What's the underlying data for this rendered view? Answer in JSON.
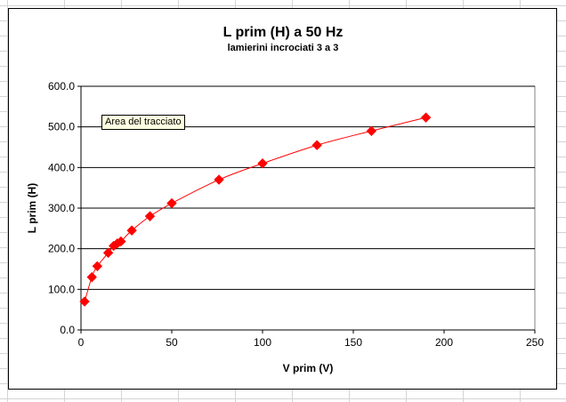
{
  "tooltip": "Area del tracciato",
  "colors": {
    "series": "#ff0000",
    "marker": "#ff0000",
    "grid": "#000000",
    "plot_bg": "#ffffff"
  },
  "chart_data": {
    "type": "scatter",
    "title": "L prim (H) a 50 Hz",
    "subtitle": "lamierini incrociati 3 a 3",
    "xlabel": "V prim (V)",
    "ylabel": "L prim (H)",
    "xlim": [
      0,
      250
    ],
    "ylim": [
      0,
      600
    ],
    "xticks": [
      0,
      50,
      100,
      150,
      200,
      250
    ],
    "yticks": [
      0,
      100,
      200,
      300,
      400,
      500,
      600
    ],
    "xtick_labels": [
      "0",
      "50",
      "100",
      "150",
      "200",
      "250"
    ],
    "ytick_labels": [
      "0.0",
      "100.0",
      "200.0",
      "300.0",
      "400.0",
      "500.0",
      "600.0"
    ],
    "grid": "horizontal",
    "legend": "none",
    "marker": "diamond",
    "line": "smoothed",
    "series": [
      {
        "x": [
          2,
          6,
          9,
          15,
          18,
          20,
          22,
          28,
          38,
          50,
          76,
          100,
          130,
          160,
          190
        ],
        "y": [
          70,
          130,
          157,
          190,
          207,
          213,
          218,
          245,
          280,
          312,
          370,
          410,
          455,
          490,
          523
        ]
      }
    ]
  }
}
